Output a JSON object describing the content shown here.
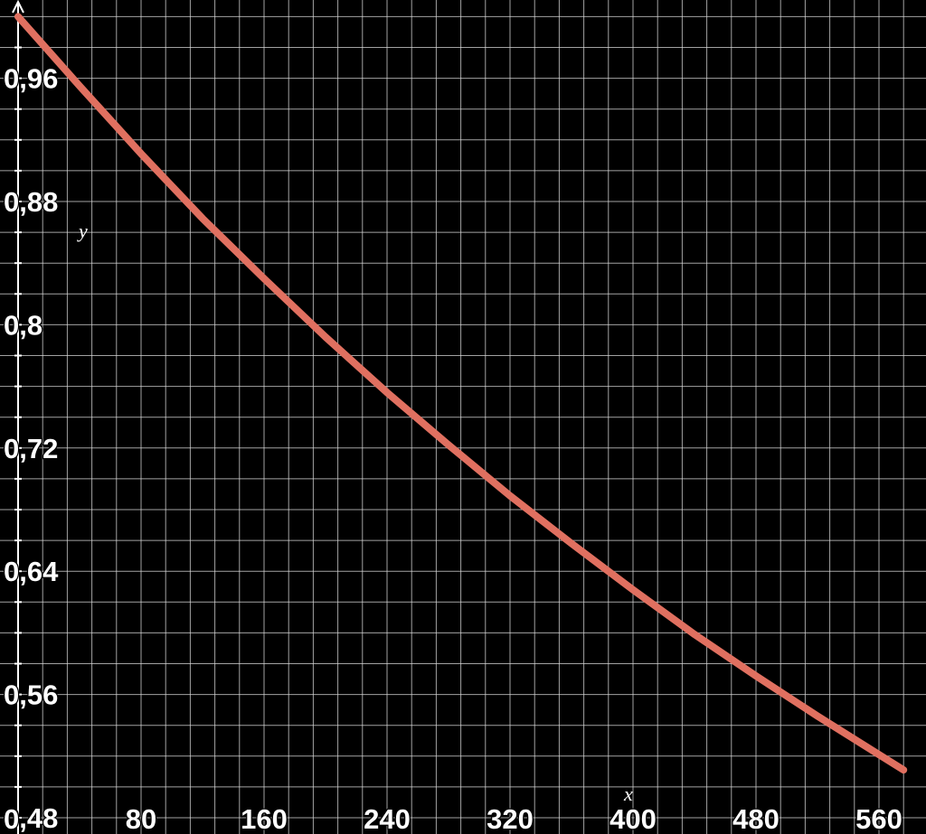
{
  "chart_data": {
    "type": "line",
    "title": "",
    "xlabel": "x",
    "ylabel": "y",
    "xlim": [
      0,
      576
    ],
    "ylim": [
      0.48,
      1.0
    ],
    "x_ticks": [
      0,
      80,
      160,
      240,
      320,
      400,
      480,
      560
    ],
    "x_tick_labels": [
      "0",
      "80",
      "160",
      "240",
      "320",
      "400",
      "480",
      "560"
    ],
    "y_ticks": [
      0.48,
      0.56,
      0.64,
      0.72,
      0.8,
      0.88,
      0.96
    ],
    "y_tick_labels": [
      "0,48",
      "0,56",
      "0,64",
      "0,72",
      "0,8",
      "0,88",
      "0,96"
    ],
    "grid": true,
    "background": "#000000",
    "grid_color": "#d9d9d9",
    "axis_color": "#ffffff",
    "series": [
      {
        "color": "#e07060",
        "x": [
          0,
          40,
          80,
          120,
          160,
          200,
          240,
          280,
          320,
          360,
          400,
          440,
          480,
          520,
          560,
          576
        ],
        "y": [
          1.0,
          0.955,
          0.911,
          0.869,
          0.83,
          0.792,
          0.756,
          0.722,
          0.689,
          0.658,
          0.628,
          0.599,
          0.572,
          0.546,
          0.521,
          0.511
        ]
      }
    ]
  }
}
